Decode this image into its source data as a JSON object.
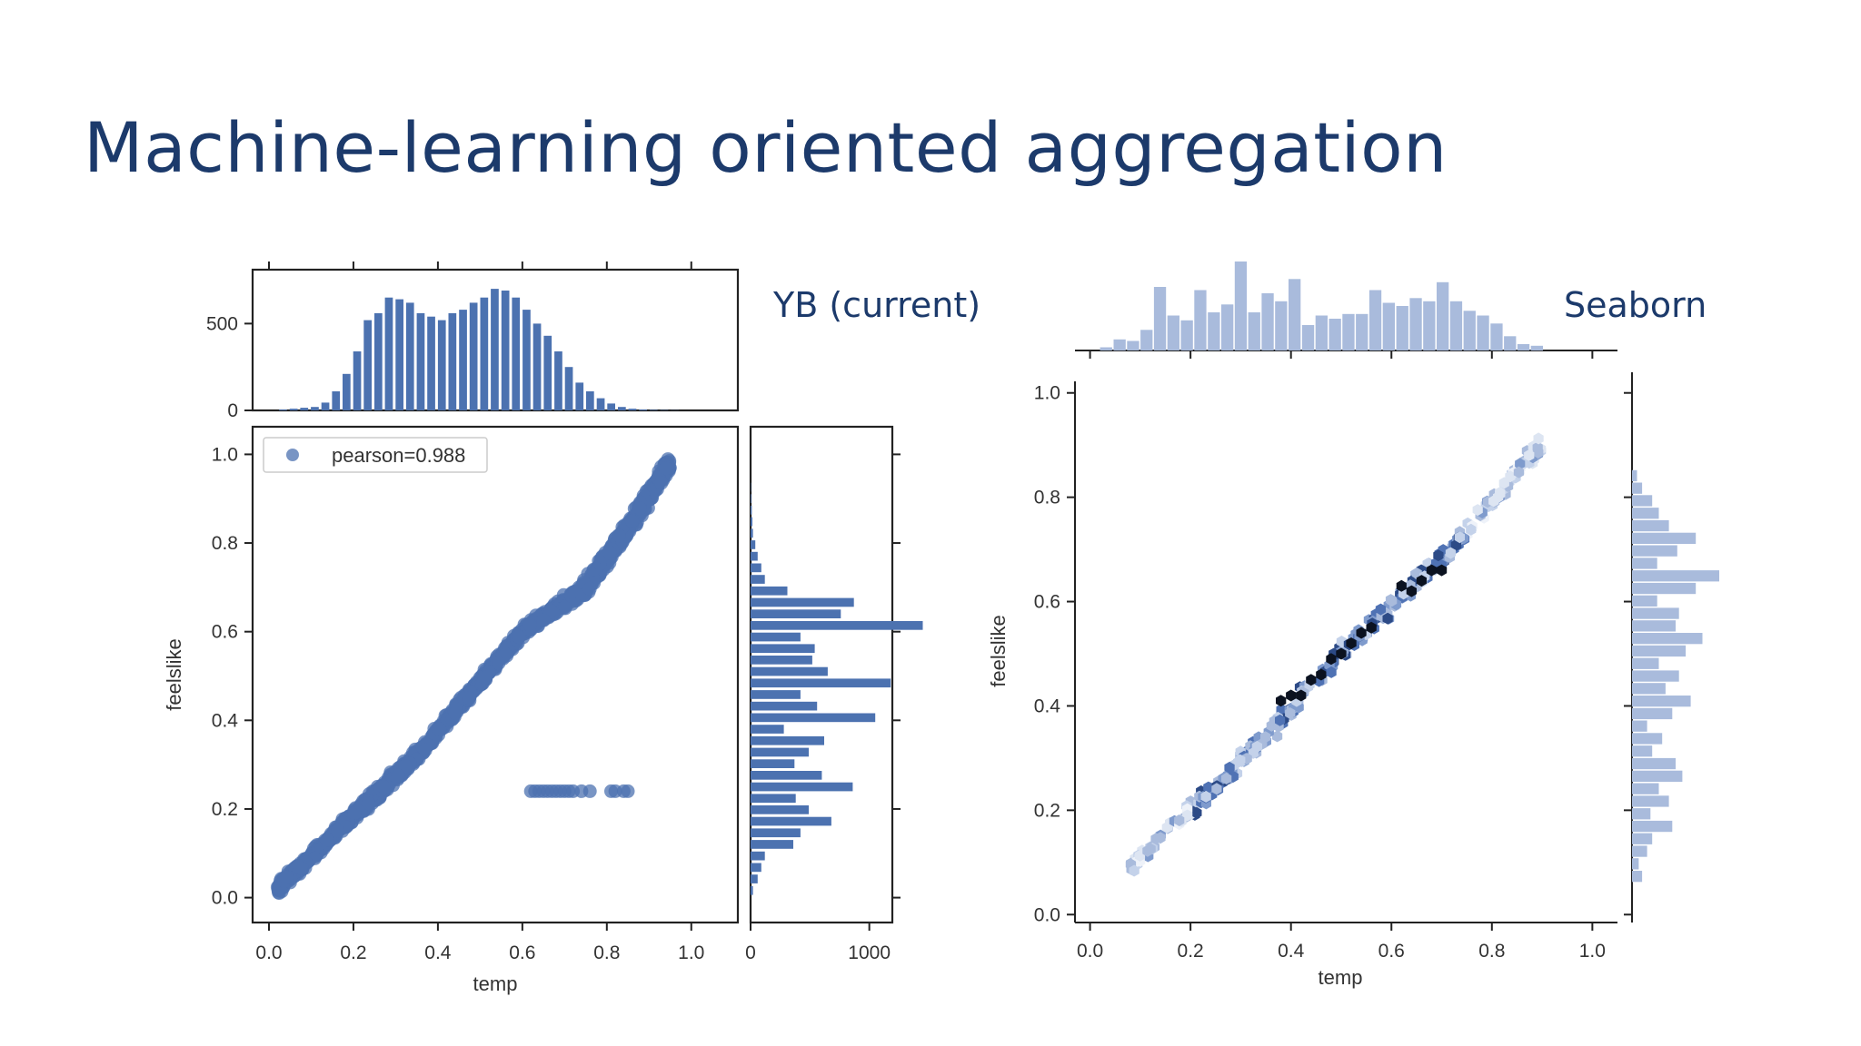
{
  "slide": {
    "title": "Machine-learning oriented aggregation",
    "caption_left": "YB (current)",
    "caption_right": "Seaborn"
  },
  "colors": {
    "title": "#1c3a6b",
    "yb_blue": "#4c72b0",
    "seaborn_light": "#a9bbdc",
    "hex_dark": "#0b1220"
  },
  "chart_data": [
    {
      "id": "yb_joint_scatter",
      "type": "scatter",
      "xlabel": "temp",
      "ylabel": "feelslike",
      "xlim": [
        0.0,
        1.05
      ],
      "ylim": [
        -0.05,
        1.05
      ],
      "xticks": [
        "0.0",
        "0.2",
        "0.4",
        "0.6",
        "0.8",
        "1.0"
      ],
      "yticks": [
        "0.0",
        "0.2",
        "0.4",
        "0.6",
        "0.8",
        "1.0"
      ],
      "legend": "pearson=0.988",
      "legend_position": "top-left",
      "pearson": 0.988,
      "trend": [
        [
          0.02,
          0.02
        ],
        [
          0.36,
          0.33
        ],
        [
          0.6,
          0.6
        ],
        [
          0.75,
          0.7
        ],
        [
          0.86,
          0.85
        ],
        [
          0.95,
          0.98
        ]
      ],
      "outliers_y": 0.24,
      "outliers_x": [
        0.62,
        0.63,
        0.64,
        0.65,
        0.66,
        0.67,
        0.68,
        0.69,
        0.7,
        0.71,
        0.72,
        0.74,
        0.76,
        0.81,
        0.82,
        0.84,
        0.85
      ]
    },
    {
      "id": "yb_top_hist",
      "type": "bar",
      "ylim": [
        0,
        800
      ],
      "yticks": [
        "0",
        "500"
      ],
      "bins": [
        0.01,
        0.034,
        0.058,
        0.082,
        0.106,
        0.13,
        0.154,
        0.178,
        0.202,
        0.226,
        0.25,
        0.274,
        0.298,
        0.322,
        0.346,
        0.37,
        0.394,
        0.418,
        0.442,
        0.466,
        0.49,
        0.514,
        0.538,
        0.562,
        0.586,
        0.61,
        0.634,
        0.658,
        0.682,
        0.706,
        0.73,
        0.754,
        0.778,
        0.802,
        0.826,
        0.85,
        0.874,
        0.898,
        0.922,
        0.946
      ],
      "values": [
        5,
        10,
        15,
        20,
        45,
        110,
        210,
        340,
        520,
        560,
        650,
        640,
        620,
        560,
        540,
        520,
        560,
        580,
        620,
        650,
        700,
        690,
        650,
        580,
        500,
        430,
        340,
        250,
        160,
        110,
        70,
        40,
        20,
        10,
        5,
        3,
        2,
        1,
        0,
        0
      ]
    },
    {
      "id": "yb_right_hist",
      "type": "bar",
      "orientation": "horizontal",
      "xlim": [
        0,
        1500
      ],
      "xticks": [
        "0",
        "1000"
      ],
      "bins": [
        0.0,
        0.026,
        0.052,
        0.078,
        0.104,
        0.13,
        0.156,
        0.182,
        0.208,
        0.234,
        0.26,
        0.286,
        0.312,
        0.338,
        0.364,
        0.39,
        0.416,
        0.442,
        0.468,
        0.494,
        0.52,
        0.546,
        0.572,
        0.598,
        0.624,
        0.65,
        0.676,
        0.702,
        0.728,
        0.754,
        0.78,
        0.806,
        0.832,
        0.858,
        0.884,
        0.91,
        0.936
      ],
      "values": [
        20,
        60,
        90,
        120,
        360,
        420,
        680,
        490,
        380,
        860,
        600,
        370,
        490,
        620,
        280,
        1050,
        560,
        420,
        1180,
        650,
        520,
        540,
        420,
        1450,
        760,
        870,
        310,
        120,
        90,
        60,
        40,
        20,
        15,
        10,
        5,
        2,
        0
      ]
    },
    {
      "id": "seaborn_joint_hex",
      "type": "heatmap",
      "xlabel": "temp",
      "ylabel": "feelslike",
      "xlim": [
        -0.03,
        1.05
      ],
      "ylim": [
        -0.05,
        1.05
      ],
      "xticks": [
        "0.0",
        "0.2",
        "0.4",
        "0.6",
        "0.8",
        "1.0"
      ],
      "yticks": [
        "0.0",
        "0.2",
        "0.4",
        "0.6",
        "0.8",
        "1.0"
      ],
      "gridsize": "hex",
      "band": [
        [
          0.08,
          0.09
        ],
        [
          0.2,
          0.2
        ],
        [
          0.34,
          0.33
        ],
        [
          0.42,
          0.42
        ],
        [
          0.5,
          0.5
        ],
        [
          0.62,
          0.61
        ],
        [
          0.72,
          0.7
        ],
        [
          0.84,
          0.84
        ],
        [
          0.9,
          0.9
        ]
      ],
      "dense_points": [
        [
          0.4,
          0.42
        ],
        [
          0.42,
          0.42
        ],
        [
          0.38,
          0.41
        ],
        [
          0.44,
          0.45
        ],
        [
          0.46,
          0.46
        ],
        [
          0.48,
          0.49
        ],
        [
          0.5,
          0.5
        ],
        [
          0.52,
          0.52
        ],
        [
          0.54,
          0.54
        ],
        [
          0.56,
          0.55
        ],
        [
          0.64,
          0.62
        ],
        [
          0.62,
          0.63
        ],
        [
          0.66,
          0.64
        ],
        [
          0.68,
          0.66
        ],
        [
          0.7,
          0.66
        ]
      ]
    },
    {
      "id": "seaborn_top_hist",
      "type": "bar",
      "bins": [
        0.02,
        0.0468,
        0.0736,
        0.1004,
        0.1272,
        0.154,
        0.1808,
        0.2076,
        0.2344,
        0.2612,
        0.288,
        0.3148,
        0.3416,
        0.3684,
        0.3952,
        0.422,
        0.4488,
        0.4756,
        0.5024,
        0.5292,
        0.556,
        0.5828,
        0.6096,
        0.6364,
        0.6632,
        0.69,
        0.7168,
        0.7436,
        0.7704,
        0.7972,
        0.824,
        0.8508,
        0.8776
      ],
      "values": [
        20,
        70,
        60,
        130,
        400,
        220,
        190,
        380,
        240,
        290,
        560,
        240,
        360,
        310,
        450,
        160,
        220,
        200,
        230,
        230,
        380,
        300,
        280,
        330,
        310,
        430,
        310,
        250,
        220,
        170,
        90,
        40,
        30
      ]
    },
    {
      "id": "seaborn_right_hist",
      "type": "bar",
      "orientation": "horizontal",
      "bins": [
        0.06,
        0.084,
        0.108,
        0.132,
        0.156,
        0.18,
        0.204,
        0.228,
        0.252,
        0.276,
        0.3,
        0.324,
        0.348,
        0.372,
        0.396,
        0.42,
        0.444,
        0.468,
        0.492,
        0.516,
        0.54,
        0.564,
        0.588,
        0.612,
        0.636,
        0.66,
        0.684,
        0.708,
        0.732,
        0.756,
        0.78,
        0.804,
        0.828
      ],
      "values": [
        60,
        40,
        90,
        120,
        240,
        110,
        220,
        160,
        300,
        260,
        120,
        180,
        90,
        240,
        350,
        200,
        280,
        160,
        320,
        420,
        260,
        280,
        150,
        380,
        520,
        150,
        270,
        380,
        220,
        160,
        120,
        60,
        30
      ]
    }
  ]
}
